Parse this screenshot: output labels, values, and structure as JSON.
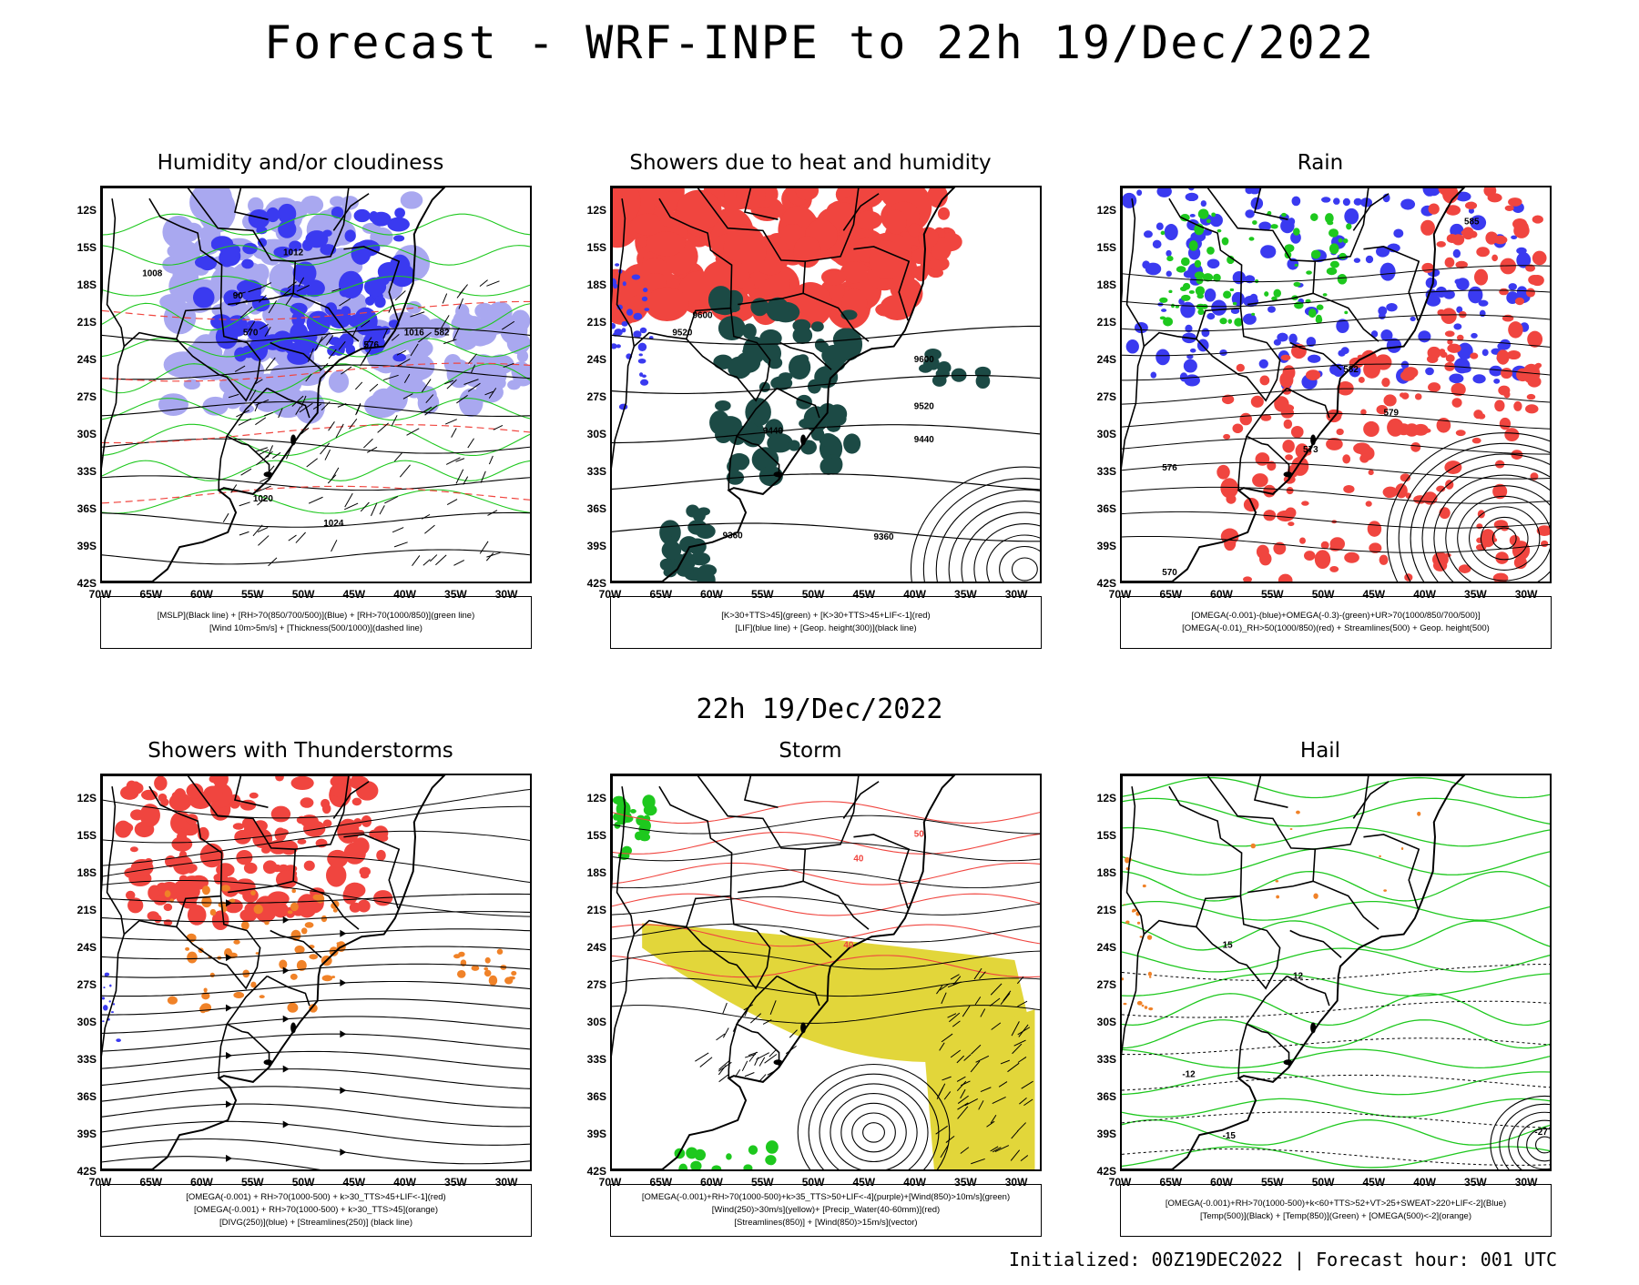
{
  "header": {
    "title": "Forecast - WRF-INPE to 22h 19/Dec/2022",
    "subtitle": "22h 19/Dec/2022",
    "footer": "Initialized: 00Z19DEC2022 | Forecast hour: 001 UTC"
  },
  "axes": {
    "lat": [
      "12S",
      "15S",
      "18S",
      "21S",
      "24S",
      "27S",
      "30S",
      "33S",
      "36S",
      "39S",
      "42S"
    ],
    "lon": [
      "70W",
      "65W",
      "60W",
      "55W",
      "50W",
      "45W",
      "40W",
      "35W",
      "30W"
    ]
  },
  "colors": {
    "red": "#f0453f",
    "blue": "#3a3af0",
    "lightblue": "#a9a8f0",
    "green": "#1ec81e",
    "darkteal": "#1c4a45",
    "orange": "#f08228",
    "yellow": "#e2d63a"
  },
  "panels": [
    {
      "title": "Humidity and/or cloudiness",
      "legend": [
        "[MSLP](Black line) + [RH>70(850/700/500)](Blue) + [RH>70(1000/850)](green line)",
        "[Wind 10m>5m/s] + [Thickness(500/1000)](dashed line)"
      ],
      "contour_labels": [
        "1012",
        "1016",
        "1020",
        "1024",
        "1008",
        "570",
        "576",
        "582",
        "90"
      ]
    },
    {
      "title": "Showers due to heat and humidity",
      "legend": [
        "[K>30+TTS>45](green) + [K>30+TTS>45+LIF<-1](red)",
        "[LIF](blue line) + [Geop. height(300)](black line)"
      ],
      "contour_labels": [
        "9600",
        "9520",
        "9440",
        "9360"
      ]
    },
    {
      "title": "Rain",
      "legend": [
        "[OMEGA(-0.001)-(blue)+OMEGA(-0.3)-(green)+UR>70(1000/850/700/500)]",
        "[OMEGA(-0.01)_RH>50(1000/850)(red) + Streamlines(500) + Geop. height(500)"
      ],
      "contour_labels": [
        "585",
        "582",
        "579",
        "576",
        "573",
        "570"
      ]
    },
    {
      "title": "Showers with Thunderstorms",
      "legend": [
        "[OMEGA(-0.001) + RH>70(1000-500) + k>30_TTS>45+LIF<-1](red)",
        "[OMEGA(-0.001) + RH>70(1000-500) + k>30_TTS>45](orange)",
        "[DIVG(250)](blue) + [Streamlines(250)] (black line)"
      ],
      "contour_labels": []
    },
    {
      "title": "Storm",
      "legend": [
        "[OMEGA(-0.001)+RH>70(1000-500)+k>35_TTS>50+LIF<-4](purple)+[Wind(850)>10m/s](green)",
        "[Wind(250)>30m/s](yellow)+ [Precip_Water(40-60mm)](red)",
        "[Streamlines(850)] + [Wind(850)>15m/s](vector)"
      ],
      "contour_labels": [
        "40",
        "50"
      ]
    },
    {
      "title": "Hail",
      "legend": [
        "[OMEGA(-0.001)+RH>70(1000-500)+k<60+TTS>52+VT>25+SWEAT>220+LIF<-2](Blue)",
        "[Temp(500)](Black) + [Temp(850)](Green) + [OMEGA(500)<-2](orange)"
      ],
      "contour_labels": [
        "15",
        "12",
        "-12",
        "-15",
        "-27"
      ]
    }
  ]
}
